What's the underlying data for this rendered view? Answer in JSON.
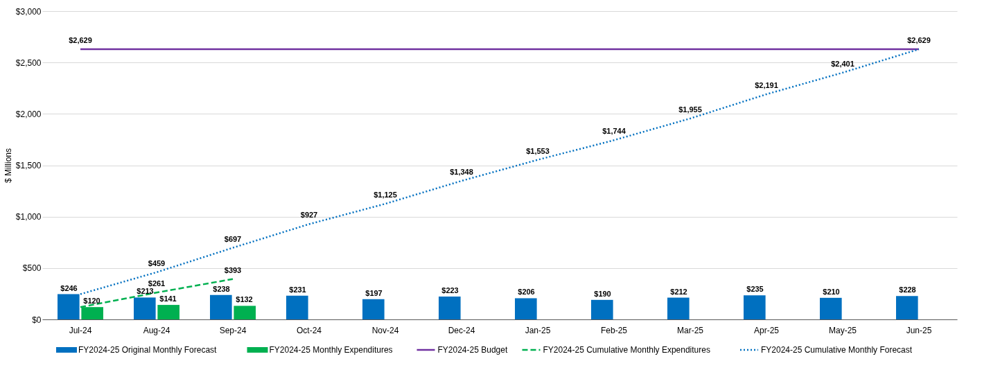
{
  "chart_data": {
    "type": "bar",
    "ylabel": "$ Millions",
    "categories": [
      "Jul-24",
      "Aug-24",
      "Sep-24",
      "Oct-24",
      "Nov-24",
      "Dec-24",
      "Jan-25",
      "Feb-25",
      "Mar-25",
      "Apr-25",
      "May-25",
      "Jun-25"
    ],
    "ylim": [
      0,
      3000
    ],
    "yticks": [
      {
        "value": 0,
        "label": "$0"
      },
      {
        "value": 500,
        "label": "$500"
      },
      {
        "value": 1000,
        "label": "$1,000"
      },
      {
        "value": 1500,
        "label": "$1,500"
      },
      {
        "value": 2000,
        "label": "$2,000"
      },
      {
        "value": 2500,
        "label": "$2,500"
      },
      {
        "value": 3000,
        "label": "$3,000"
      }
    ],
    "grid": "y",
    "legend": "bottom",
    "marker": "none",
    "series": [
      {
        "name": "FY2024-25 Original Monthly Forecast",
        "type": "bar",
        "color": "#0070c0",
        "values": [
          246,
          213,
          238,
          231,
          197,
          223,
          206,
          190,
          212,
          235,
          210,
          228
        ],
        "value_labels": [
          "$246",
          "$213",
          "$238",
          "$231",
          "$197",
          "$223",
          "$206",
          "$190",
          "$212",
          "$235",
          "$210",
          "$228"
        ]
      },
      {
        "name": "FY2024-25 Monthly Expenditures",
        "type": "bar",
        "color": "#00b050",
        "values": [
          120,
          141,
          132,
          null,
          null,
          null,
          null,
          null,
          null,
          null,
          null,
          null
        ],
        "value_labels": [
          "$120",
          "$141",
          "$132",
          null,
          null,
          null,
          null,
          null,
          null,
          null,
          null,
          null
        ]
      },
      {
        "name": "FY2024-25 Budget",
        "type": "line",
        "line_style": "solid",
        "color": "#7030a0",
        "values": [
          2629,
          2629,
          2629,
          2629,
          2629,
          2629,
          2629,
          2629,
          2629,
          2629,
          2629,
          2629
        ],
        "value_labels": [
          "$2,629",
          null,
          null,
          null,
          null,
          null,
          null,
          null,
          null,
          null,
          null,
          null
        ]
      },
      {
        "name": "FY2024-25 Cumulative Monthly Expenditures",
        "type": "line",
        "line_style": "dashed",
        "color": "#00b050",
        "values": [
          120,
          261,
          393,
          null,
          null,
          null,
          null,
          null,
          null,
          null,
          null,
          null
        ],
        "value_labels": [
          null,
          "$261",
          "$393",
          null,
          null,
          null,
          null,
          null,
          null,
          null,
          null,
          null
        ]
      },
      {
        "name": "FY2024-25  Cumulative Monthly Forecast",
        "type": "line",
        "line_style": "dotted",
        "color": "#0070c0",
        "values": [
          246,
          459,
          697,
          927,
          1125,
          1348,
          1553,
          1744,
          1955,
          2191,
          2401,
          2629
        ],
        "value_labels": [
          null,
          "$459",
          "$697",
          "$927",
          "$1,125",
          "$1,348",
          "$1,553",
          "$1,744",
          "$1,955",
          "$2,191",
          "$2,401",
          "$2,629"
        ]
      }
    ]
  }
}
